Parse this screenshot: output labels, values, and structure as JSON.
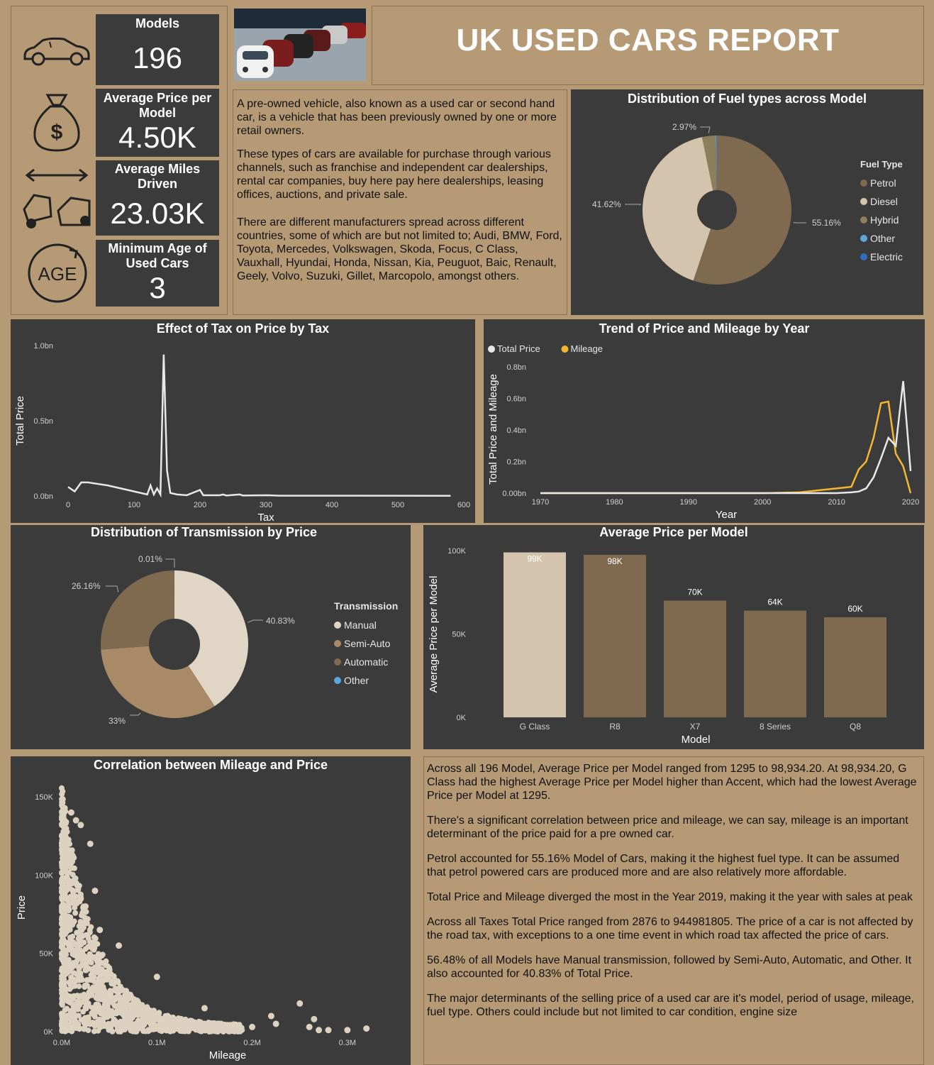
{
  "report_title": "UK USED CARS REPORT",
  "kpis": {
    "models": {
      "label": "Models",
      "value": "196"
    },
    "avg_price": {
      "label": "Average Price per Model",
      "value": "4.50K"
    },
    "avg_miles": {
      "label": "Average Miles Driven",
      "value": "23.03K"
    },
    "min_age": {
      "label": "Minimum Age of Used Cars",
      "value": "3"
    }
  },
  "icons": [
    "car-icon",
    "money-bag-icon",
    "distance-cars-icon",
    "age-icon"
  ],
  "intro": {
    "p1": "A pre-owned vehicle, also known as a used car or second hand car, is a vehicle that has been previously owned by one or more retail owners.",
    "p2": "These types of cars are available for purchase through various channels, such as franchise and independent car dealerships, rental car companies, buy here pay here dealerships, leasing offices, auctions, and private sale.",
    "p3": "There are different manufacturers spread across different countries, some of which are but not limited to; Audi, BMW, Ford, Toyota, Mercedes, Volkswagen, Skoda, Focus, C Class, Vauxhall, Hyundai, Honda, Nissan, Kia, Peuguot, Baic, Renault, Geely, Volvo, Suzuki, Gillet, Marcopolo, amongst others."
  },
  "insights": [
    "Across all 196 Model, Average Price per Model ranged from 1295 to 98,934.20. At 98,934.20, G Class had the highest Average Price per Model higher than Accent, which had the lowest Average Price per Model at 1295.",
    "There's a significant correlation between price and mileage, we can say, mileage is an important determinant of the price paid for a pre owned car.",
    "Petrol accounted for 55.16% Model of Cars, making it the highest fuel type. It can be assumed that petrol powered cars are produced more and are also relatively more affordable.",
    "Total Price and Mileage diverged the most in the Year 2019, making it the year with sales at peak",
    "Across all Taxes Total Price ranged from 2876 to 944981805. The price of a car is not affected by the road tax, with exceptions to a one time event in which road tax affected the price of cars.",
    "56.48% of all Models have Manual transmission, followed by Semi-Auto, Automatic, and Other. It also accounted for 40.83% of Total Price.",
    "The major determinants of the selling price of a used car are it's model, period of usage, mileage, fuel type. Others could include but not limited to car condition, engine size"
  ],
  "colors": {
    "bg": "#b69a76",
    "panel": "#3b3b3b",
    "petrol": "#806a4f",
    "diesel": "#d4c3ad",
    "hybrid": "#8d7e5c",
    "other": "#5aa7e0",
    "electric": "#2f6fc1",
    "price_line": "#e8e8e8",
    "mileage_line": "#f2b72e"
  },
  "chart_data": [
    {
      "id": "fuel",
      "type": "pie",
      "title": "Distribution of Fuel types across Model",
      "legend_title": "Fuel Type",
      "legend_position": "right",
      "slices": [
        {
          "name": "Petrol",
          "value": 55.16,
          "label": "55.16%",
          "color": "#806a4f"
        },
        {
          "name": "Diesel",
          "value": 41.62,
          "label": "41.62%",
          "color": "#d4c3ad"
        },
        {
          "name": "Hybrid",
          "value": 2.97,
          "label": "2.97%",
          "color": "#8d7e5c"
        },
        {
          "name": "Other",
          "value": 0.15,
          "label": "",
          "color": "#5aa7e0"
        },
        {
          "name": "Electric",
          "value": 0.1,
          "label": "",
          "color": "#2f6fc1"
        }
      ]
    },
    {
      "id": "tax",
      "type": "line",
      "title": "Effect of Tax on Price by Tax",
      "xlabel": "Tax",
      "ylabel": "Total Price",
      "xlim": [
        0,
        600
      ],
      "ylim": [
        0,
        1.0
      ],
      "xticks": [
        "0",
        "100",
        "200",
        "300",
        "400",
        "500",
        "600"
      ],
      "yticks": [
        "0.0bn",
        "0.5bn",
        "1.0bn"
      ],
      "points": [
        [
          0,
          0.06
        ],
        [
          10,
          0.03
        ],
        [
          20,
          0.09
        ],
        [
          30,
          0.09
        ],
        [
          60,
          0.07
        ],
        [
          100,
          0.03
        ],
        [
          120,
          0.01
        ],
        [
          125,
          0.07
        ],
        [
          130,
          0.01
        ],
        [
          135,
          0.05
        ],
        [
          140,
          0.01
        ],
        [
          145,
          0.94
        ],
        [
          150,
          0.17
        ],
        [
          155,
          0.02
        ],
        [
          165,
          0.01
        ],
        [
          180,
          0.005
        ],
        [
          200,
          0.04
        ],
        [
          205,
          0.005
        ],
        [
          230,
          0.005
        ],
        [
          235,
          0.01
        ],
        [
          240,
          0.003
        ],
        [
          260,
          0.01
        ],
        [
          265,
          0.003
        ],
        [
          300,
          0.005
        ],
        [
          320,
          0.002
        ],
        [
          580,
          0.001
        ]
      ],
      "series_color": "#e8e8e8"
    },
    {
      "id": "trend",
      "type": "line",
      "title": "Trend of Price and Mileage by Year",
      "xlabel": "Year",
      "ylabel": "Total Price and Mileage",
      "xlim": [
        1970,
        2020
      ],
      "ylim": [
        0,
        0.8
      ],
      "xticks": [
        "1970",
        "1980",
        "1990",
        "2000",
        "2010",
        "2020"
      ],
      "yticks": [
        "0.00bn",
        "0.2bn",
        "0.4bn",
        "0.6bn",
        "0.8bn"
      ],
      "legend_position": "top-left",
      "series": [
        {
          "name": "Total Price",
          "color": "#e8e8e8",
          "points": [
            [
              1970,
              0.0
            ],
            [
              2000,
              0.0
            ],
            [
              2010,
              0.0
            ],
            [
              2012,
              0.005
            ],
            [
              2013,
              0.01
            ],
            [
              2014,
              0.03
            ],
            [
              2015,
              0.1
            ],
            [
              2016,
              0.22
            ],
            [
              2017,
              0.35
            ],
            [
              2018,
              0.3
            ],
            [
              2019,
              0.71
            ],
            [
              2020,
              0.14
            ]
          ]
        },
        {
          "name": "Mileage",
          "color": "#f2b72e",
          "points": [
            [
              1970,
              0.0
            ],
            [
              2000,
              0.0
            ],
            [
              2005,
              0.005
            ],
            [
              2008,
              0.02
            ],
            [
              2010,
              0.03
            ],
            [
              2012,
              0.04
            ],
            [
              2013,
              0.15
            ],
            [
              2014,
              0.2
            ],
            [
              2015,
              0.35
            ],
            [
              2016,
              0.57
            ],
            [
              2017,
              0.58
            ],
            [
              2018,
              0.25
            ],
            [
              2019,
              0.17
            ],
            [
              2020,
              0.0
            ]
          ]
        }
      ]
    },
    {
      "id": "transmission",
      "type": "pie",
      "title": "Distribution of Transmission by Price",
      "legend_title": "Transmission",
      "legend_position": "right",
      "slices": [
        {
          "name": "Manual",
          "value": 40.83,
          "label": "40.83%",
          "color": "#e1d5c5"
        },
        {
          "name": "Semi-Auto",
          "value": 33,
          "label": "33%",
          "color": "#a88a66"
        },
        {
          "name": "Automatic",
          "value": 26.16,
          "label": "26.16%",
          "color": "#806a4f"
        },
        {
          "name": "Other",
          "value": 0.01,
          "label": "0.01%",
          "color": "#5aa7e0"
        }
      ]
    },
    {
      "id": "avgprice",
      "type": "bar",
      "title": "Average Price per Model",
      "xlabel": "Model",
      "ylabel": "Average Price per Model",
      "ylim": [
        0,
        100000
      ],
      "yticks": [
        "0K",
        "50K",
        "100K"
      ],
      "categories": [
        "G Class",
        "R8",
        "X7",
        "8 Series",
        "Q8"
      ],
      "values": [
        98934.2,
        97500,
        70000,
        64000,
        60000
      ],
      "labels": [
        "99K",
        "98K",
        "70K",
        "64K",
        "60K"
      ],
      "bar_colors": [
        "#d4c3ad",
        "#806a4f",
        "#806a4f",
        "#806a4f",
        "#806a4f"
      ]
    },
    {
      "id": "scatter",
      "type": "scatter",
      "title": "Correlation between Mileage and Price",
      "xlabel": "Mileage",
      "ylabel": "Price",
      "xlim": [
        0,
        0.35
      ],
      "ylim": [
        0,
        160000
      ],
      "xticks": [
        "0.0M",
        "0.1M",
        "0.2M",
        "0.3M"
      ],
      "yticks": [
        "0K",
        "50K",
        "100K",
        "150K"
      ],
      "color": "#ddd1c0",
      "outliers": [
        [
          0.01,
          140000
        ],
        [
          0.015,
          135000
        ],
        [
          0.02,
          132000
        ],
        [
          0.03,
          120000
        ],
        [
          0.035,
          90000
        ],
        [
          0.02,
          85000
        ],
        [
          0.025,
          80000
        ],
        [
          0.04,
          65000
        ],
        [
          0.06,
          55000
        ],
        [
          0.1,
          35000
        ],
        [
          0.15,
          15000
        ],
        [
          0.2,
          3000
        ],
        [
          0.22,
          10000
        ],
        [
          0.225,
          5000
        ],
        [
          0.25,
          18000
        ],
        [
          0.26,
          3000
        ],
        [
          0.265,
          8000
        ],
        [
          0.28,
          1000
        ],
        [
          0.3,
          1000
        ],
        [
          0.32,
          2000
        ],
        [
          0.27,
          1000
        ]
      ]
    }
  ]
}
